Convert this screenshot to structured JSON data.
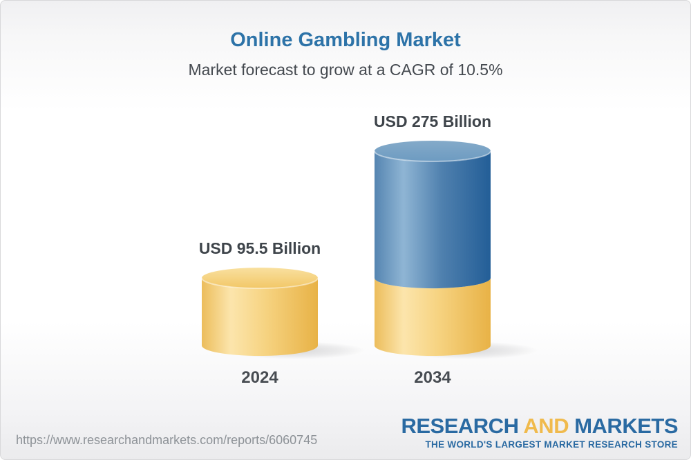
{
  "header": {
    "title": "Online Gambling Market",
    "subtitle": "Market forecast to grow at a CAGR of 10.5%"
  },
  "chart_data": {
    "type": "bar",
    "subtype": "3d-cylinder-stacked",
    "title": "Online Gambling Market",
    "subtitle": "Market forecast to grow at a CAGR of 10.5%",
    "cagr_percent": 10.5,
    "unit": "USD Billion",
    "categories": [
      "2024",
      "2034"
    ],
    "values": [
      95.5,
      275
    ],
    "value_labels": [
      "USD 95.5 Billion",
      "USD 275 Billion"
    ],
    "stacking_note": "2034 cylinder shows the 2024 base segment in gold with forecast growth segment in blue on top",
    "axes": "none",
    "gridlines": false,
    "legend": "none",
    "colors": {
      "base_segment_gold": "#F2C463",
      "growth_segment_blue": "#4A80AE",
      "title_blue": "#2D73A8",
      "label_dark": "#3E444A"
    }
  },
  "footer": {
    "url": "https://www.researchandmarkets.com/reports/6060745",
    "logo": {
      "part1": "RESEARCH",
      "part2": "AND",
      "part3": "MARKETS",
      "tagline": "THE WORLD'S LARGEST MARKET RESEARCH STORE"
    }
  }
}
